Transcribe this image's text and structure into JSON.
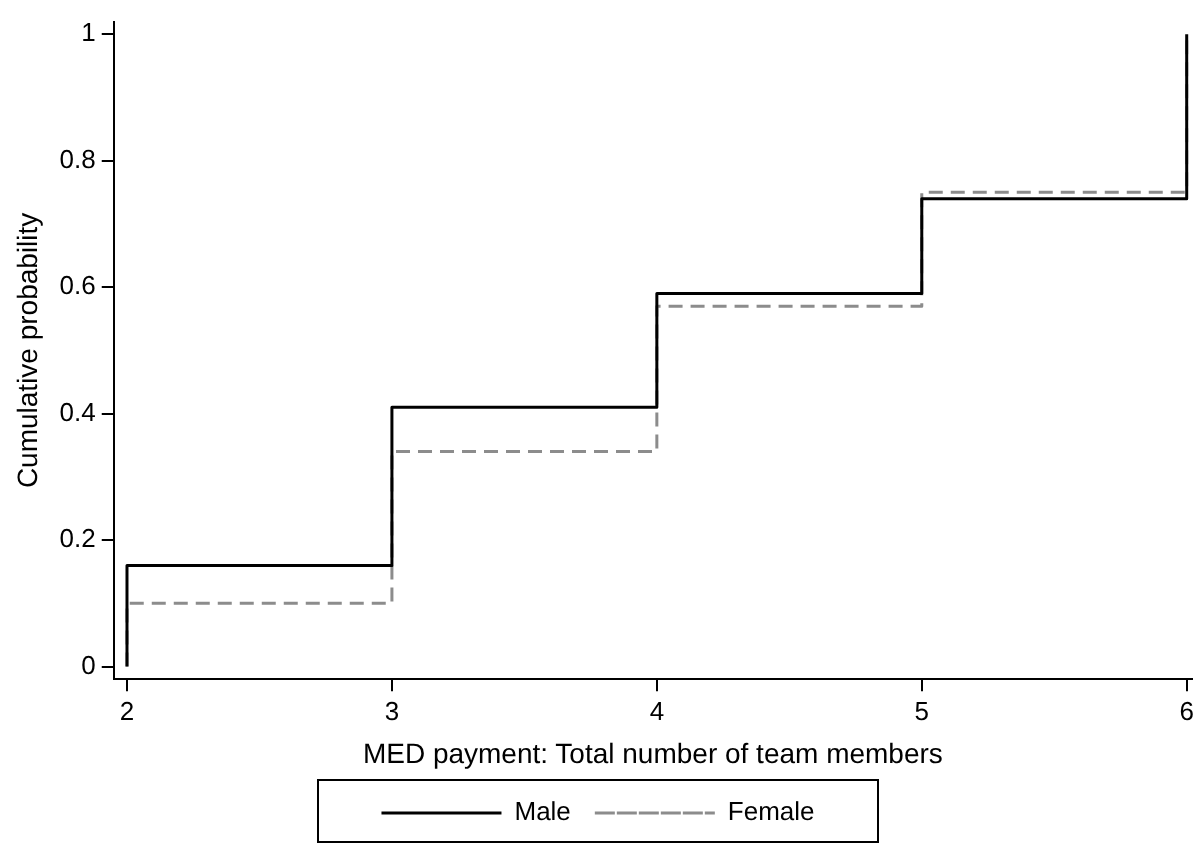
{
  "chart_data": {
    "type": "step",
    "xlabel": "MED payment: Total number of team members",
    "ylabel": "Cumulative probability",
    "xlim": [
      1.95,
      6.02
    ],
    "xticks": [
      2,
      3,
      4,
      5,
      6
    ],
    "ylim": [
      -0.02,
      1.02
    ],
    "yticks": [
      0,
      0.2,
      0.4,
      0.6,
      0.8,
      1
    ],
    "x": [
      2,
      2,
      3,
      4,
      5,
      6
    ],
    "series": [
      {
        "name": "Male",
        "color": "#000000",
        "line_style": "solid",
        "values": [
          0,
          0.16,
          0.41,
          0.59,
          0.74,
          1
        ]
      },
      {
        "name": "Female",
        "color": "#8c8c8c",
        "line_style": "dashed",
        "values": [
          0,
          0.1,
          0.34,
          0.57,
          0.75,
          1
        ]
      }
    ],
    "grid": false,
    "legend": "bottom",
    "marker": "none"
  }
}
